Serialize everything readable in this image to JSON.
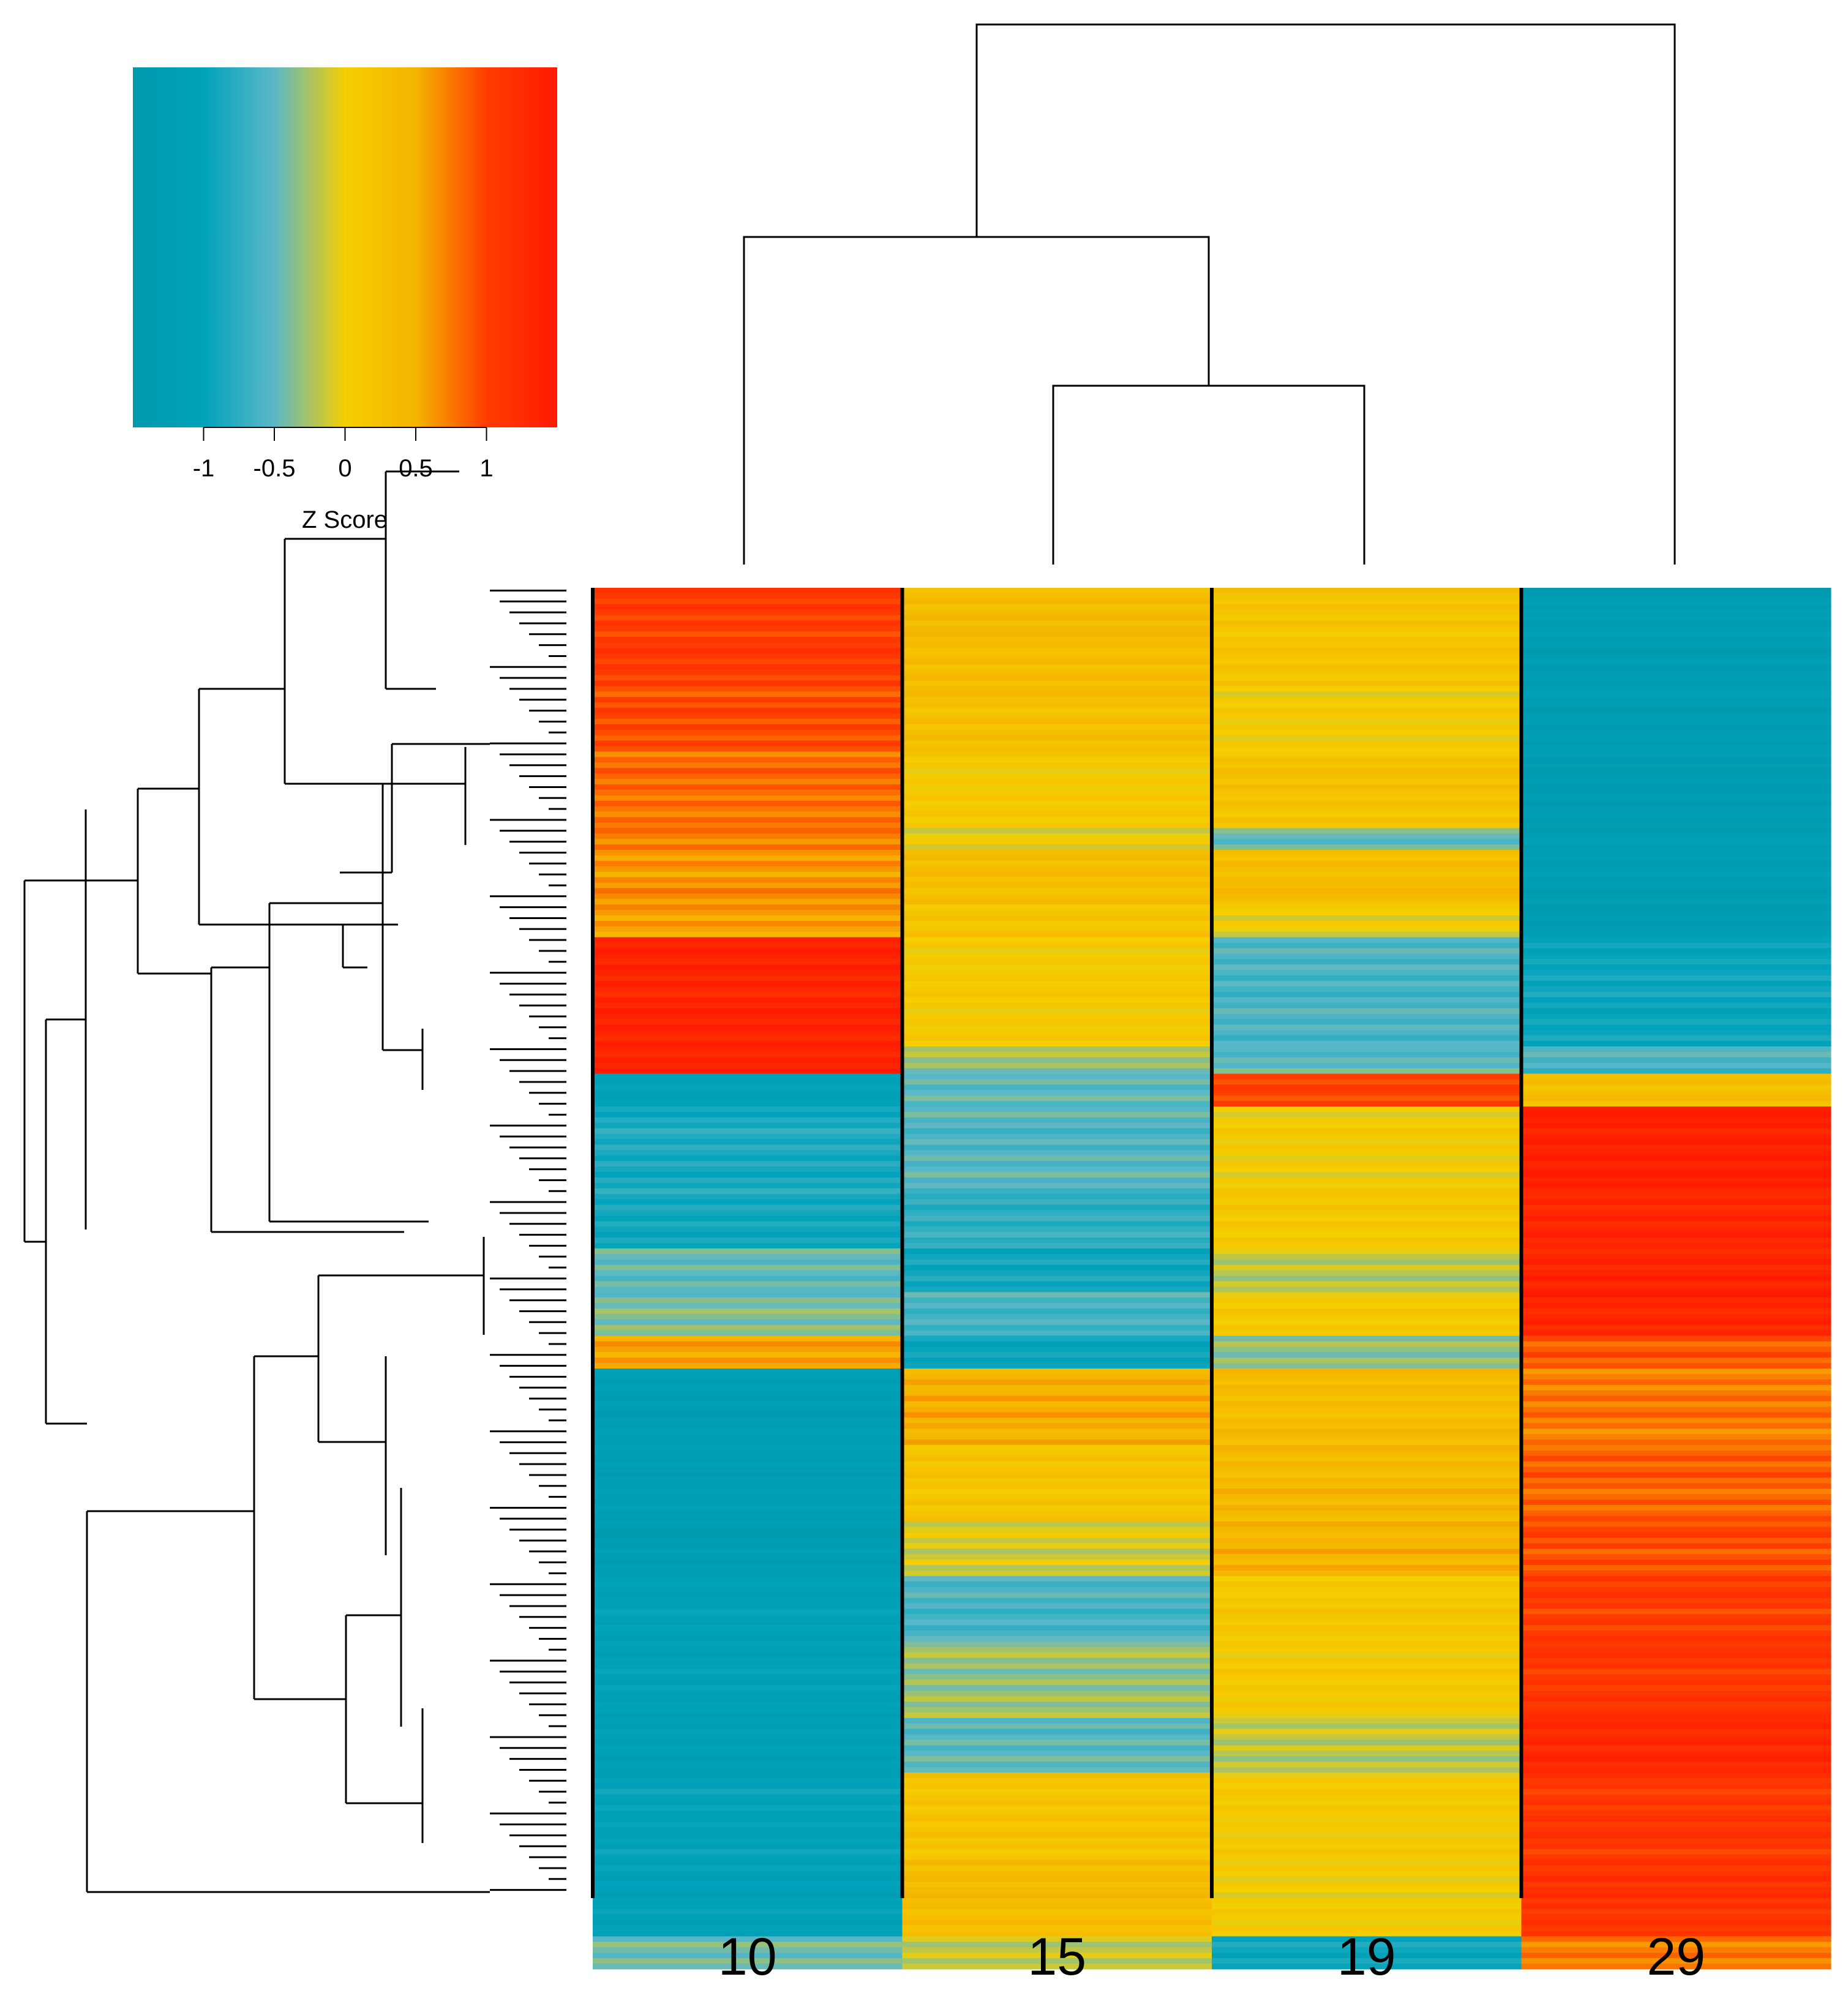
{
  "chart_data": {
    "type": "heatmap",
    "title": "",
    "columns": [
      "10",
      "15",
      "19",
      "29"
    ],
    "row_count": 240,
    "row_blocks": [
      {
        "rows": 18,
        "values": [
          1.05,
          0.35,
          0.2,
          -1.3
        ]
      },
      {
        "rows": 12,
        "values": [
          0.95,
          0.3,
          0.05,
          -1.3
        ]
      },
      {
        "rows": 14,
        "values": [
          0.8,
          0.1,
          0.25,
          -1.35
        ]
      },
      {
        "rows": 4,
        "values": [
          0.7,
          0.0,
          -0.5,
          -1.25
        ]
      },
      {
        "rows": 10,
        "values": [
          0.65,
          0.3,
          0.35,
          -1.3
        ]
      },
      {
        "rows": 6,
        "values": [
          0.6,
          0.2,
          0.0,
          -1.35
        ]
      },
      {
        "rows": 20,
        "values": [
          1.35,
          0.1,
          -0.6,
          -0.95
        ]
      },
      {
        "rows": 5,
        "values": [
          1.4,
          -0.3,
          -0.5,
          -0.6
        ]
      },
      {
        "rows": 6,
        "values": [
          -1.1,
          -0.5,
          1.0,
          0.3
        ]
      },
      {
        "rows": 16,
        "values": [
          -0.85,
          -0.55,
          0.05,
          1.4
        ]
      },
      {
        "rows": 10,
        "values": [
          -0.9,
          -0.75,
          0.15,
          1.3
        ]
      },
      {
        "rows": 8,
        "values": [
          -0.5,
          -0.9,
          -0.2,
          1.35
        ]
      },
      {
        "rows": 8,
        "values": [
          -0.4,
          -0.6,
          0.1,
          1.35
        ]
      },
      {
        "rows": 6,
        "values": [
          0.6,
          -1.0,
          -0.3,
          0.85
        ]
      },
      {
        "rows": 14,
        "values": [
          -1.25,
          0.5,
          0.35,
          0.75
        ]
      },
      {
        "rows": 14,
        "values": [
          -1.25,
          0.2,
          0.4,
          0.85
        ]
      },
      {
        "rows": 10,
        "values": [
          -1.3,
          -0.1,
          0.45,
          0.95
        ]
      },
      {
        "rows": 12,
        "values": [
          -1.1,
          -0.6,
          0.15,
          1.05
        ]
      },
      {
        "rows": 14,
        "values": [
          -1.1,
          -0.3,
          0.1,
          1.1
        ]
      },
      {
        "rows": 10,
        "values": [
          -1.15,
          -0.5,
          -0.2,
          1.3
        ]
      },
      {
        "rows": 16,
        "values": [
          -1.05,
          0.2,
          0.1,
          1.1
        ]
      },
      {
        "rows": 14,
        "values": [
          -1.1,
          0.35,
          0.05,
          1.15
        ]
      },
      {
        "rows": 6,
        "values": [
          -0.4,
          -0.2,
          -0.9,
          0.7
        ]
      }
    ],
    "value_range": [
      -1.5,
      1.5
    ],
    "colorbar": {
      "title": "Z Score",
      "ticks": [
        -1,
        -0.5,
        0,
        0.5,
        1
      ],
      "tick_labels": [
        "-1",
        "-0.5",
        "0",
        "0.5",
        "1"
      ],
      "colors": [
        "#0099ae",
        "#00a3bb",
        "#5bb8c7",
        "#f5cf00",
        "#f5b400",
        "#ff3d00",
        "#ff1a00"
      ]
    },
    "column_dendrogram": [
      {
        "merge": [
          "19",
          "15"
        ],
        "height": 0.33
      },
      {
        "merge": [
          "10",
          "15-19"
        ],
        "height": 0.6
      },
      {
        "merge": [
          "10-15-19",
          "29"
        ],
        "height": 1.0
      }
    ],
    "row_dendrogram": "shown"
  }
}
